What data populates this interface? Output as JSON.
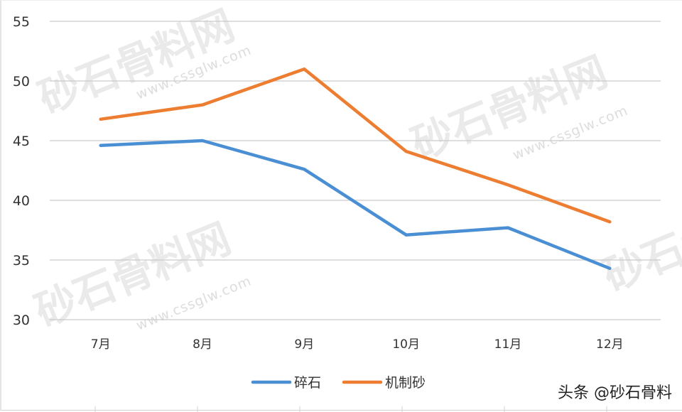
{
  "chart_data": {
    "type": "line",
    "title": "",
    "xlabel": "",
    "ylabel": "",
    "categories": [
      "7月",
      "8月",
      "9月",
      "10月",
      "11月",
      "12月"
    ],
    "series": [
      {
        "name": "碎石",
        "color": "#4a8fd3",
        "values": [
          44.6,
          45.0,
          42.6,
          37.1,
          37.7,
          34.3
        ]
      },
      {
        "name": "机制砂",
        "color": "#ed7d31",
        "values": [
          46.8,
          48.0,
          51.0,
          44.1,
          41.3,
          38.2
        ]
      }
    ],
    "ylim": [
      30,
      55
    ],
    "yticks": [
      30,
      35,
      40,
      45,
      50,
      55
    ],
    "grid": true,
    "legend_position": "bottom"
  },
  "watermark": {
    "text": "砂石骨料网",
    "url": "www.cssglw.com"
  },
  "credit": "头条 @砂石骨料"
}
